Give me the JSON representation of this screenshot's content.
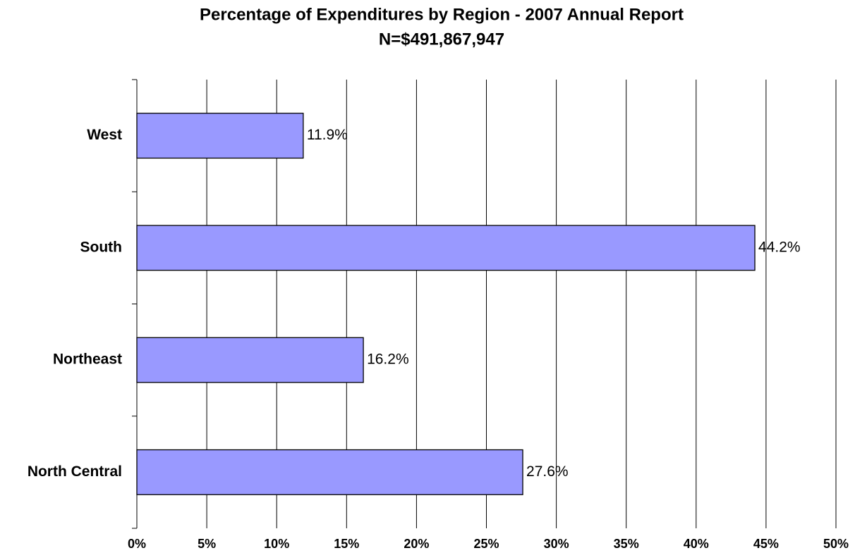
{
  "chart_data": {
    "type": "bar",
    "orientation": "horizontal",
    "title": "Percentage of Expenditures by Region - 2007 Annual Report",
    "subtitle": "N=$491,867,947",
    "categories": [
      "West",
      "South",
      "Northeast",
      "North Central"
    ],
    "values": [
      11.9,
      44.2,
      16.2,
      27.6
    ],
    "value_labels": [
      "11.9%",
      "44.2%",
      "16.2%",
      "27.6%"
    ],
    "color": "#9999ff",
    "xlim": [
      0,
      50
    ],
    "xticks": [
      {
        "value": 0,
        "label": "0%"
      },
      {
        "value": 5,
        "label": "5%"
      },
      {
        "value": 10,
        "label": "10%"
      },
      {
        "value": 15,
        "label": "15%"
      },
      {
        "value": 20,
        "label": "20%"
      },
      {
        "value": 25,
        "label": "25%"
      },
      {
        "value": 30,
        "label": "30%"
      },
      {
        "value": 35,
        "label": "35%"
      },
      {
        "value": 40,
        "label": "40%"
      },
      {
        "value": 45,
        "label": "45%"
      },
      {
        "value": 50,
        "label": "50%"
      }
    ],
    "grid": true
  }
}
